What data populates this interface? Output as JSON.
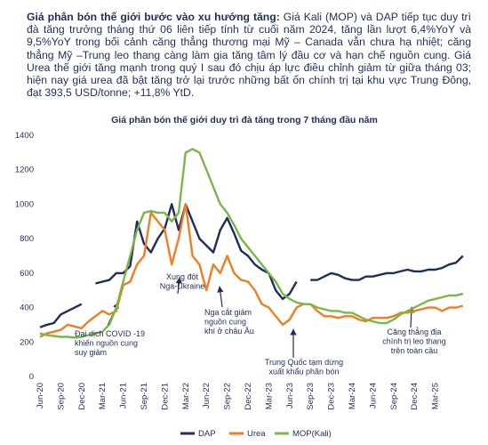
{
  "intro": {
    "lead": "Giá phân bón thế giới bước vào xu hướng tăng:",
    "body": "Giá Kali (MOP) và DAP tiếp tục duy trì đà tăng trưởng tháng thứ 06 liên tiếp tính từ cuối năm 2024, tăng lần lượt 6,4%YoY và 9,5%YoY trong bối cảnh căng thẳng thương mại Mỹ – Canada vẫn chưa hạ nhiệt; căng thẳng Mỹ –Trung leo thang càng làm gia tăng tâm lý đầu cơ và hạn chế nguồn cung. Giá Urea thế giới tăng mạnh trong quý I sau đó chịu áp lực điều chỉnh giảm từ giữa tháng 03; hiện nay giá urea đã bật tăng trở lại trước những bất ổn chính trị tại khu vực Trung Đông, đạt 393,5 USD/tonne; +11,8% YtD."
  },
  "chart_data": {
    "type": "line",
    "title": "Giá phân bón thế giới duy trì đà tăng trong 7 tháng đầu năm",
    "categories": [
      "Jun-20",
      null,
      null,
      "Sep-20",
      null,
      null,
      "Dec-20",
      null,
      null,
      "Mar-21",
      null,
      null,
      "Jun-21",
      null,
      null,
      "Sep-21",
      null,
      null,
      "Dec-21",
      null,
      null,
      "Mar-22",
      null,
      null,
      "Jun-22",
      null,
      null,
      "Sep-22",
      null,
      null,
      "Dec-22",
      null,
      null,
      "Mar-23",
      null,
      null,
      "Jun-23",
      null,
      null,
      "Sep-23",
      null,
      null,
      "Dec-23",
      null,
      null,
      "Mar-24",
      null,
      null,
      "Jun-24",
      null,
      null,
      "Sep-24",
      null,
      null,
      "Dec-24",
      null,
      null,
      "Mar-25",
      null,
      null,
      null,
      null
    ],
    "series": [
      {
        "name": "DAP",
        "color": "#1f2d5c",
        "values": [
          285,
          300,
          310,
          360,
          380,
          400,
          420,
          null,
          540,
          550,
          560,
          600,
          600,
          640,
          900,
          770,
          720,
          800,
          860,
          1000,
          850,
          1000,
          900,
          800,
          760,
          720,
          850,
          920,
          830,
          730,
          700,
          650,
          620,
          600,
          500,
          450,
          480,
          550,
          null,
          560,
          560,
          580,
          600,
          590,
          570,
          560,
          560,
          580,
          580,
          590,
          600,
          600,
          610,
          620,
          610,
          610,
          620,
          620,
          630,
          650,
          660,
          700
        ]
      },
      {
        "name": "Urea",
        "color": "#ef7d22",
        "values": [
          230,
          250,
          260,
          270,
          300,
          290,
          280,
          320,
          350,
          380,
          360,
          380,
          530,
          550,
          650,
          700,
          950,
          900,
          850,
          650,
          800,
          1000,
          700,
          650,
          500,
          650,
          600,
          700,
          600,
          560,
          550,
          500,
          420,
          400,
          350,
          300,
          330,
          400,
          420,
          420,
          380,
          350,
          350,
          340,
          350,
          350,
          330,
          320,
          340,
          340,
          340,
          350,
          370,
          370,
          380,
          390,
          400,
          400,
          380,
          400,
          400,
          410
        ]
      },
      {
        "name": "MOP(Kali)",
        "color": "#7ab648",
        "values": [
          250,
          240,
          235,
          230,
          230,
          225,
          230,
          240,
          250,
          260,
          300,
          400,
          550,
          700,
          850,
          950,
          960,
          950,
          950,
          900,
          950,
          1300,
          1320,
          1300,
          1200,
          1100,
          1000,
          950,
          880,
          800,
          750,
          700,
          650,
          600,
          550,
          480,
          450,
          430,
          420,
          420,
          400,
          390,
          380,
          380,
          370,
          370,
          350,
          330,
          320,
          310,
          310,
          330,
          360,
          380,
          400,
          420,
          440,
          450,
          460,
          470,
          470,
          480
        ]
      }
    ],
    "ylim": [
      0,
      1400
    ],
    "yticks": [
      0,
      200,
      400,
      600,
      800,
      1000,
      1200,
      1400
    ],
    "grid": false,
    "legend": "bottom",
    "annotations": [
      [
        "Đại dịch COVID -19",
        "khiến nguồn cung",
        "suy giảm"
      ],
      [
        "Xung đột",
        "Nga-Ukraine"
      ],
      [
        "Nga cắt giảm",
        "nguồn cung",
        "khí ở châu Âu"
      ],
      [
        "Trung Quốc tạm dừng",
        "xuất khẩu phân bón"
      ],
      [
        "Căng thẳng địa",
        "chính trị leo thang",
        "trên toàn cầu"
      ]
    ]
  }
}
